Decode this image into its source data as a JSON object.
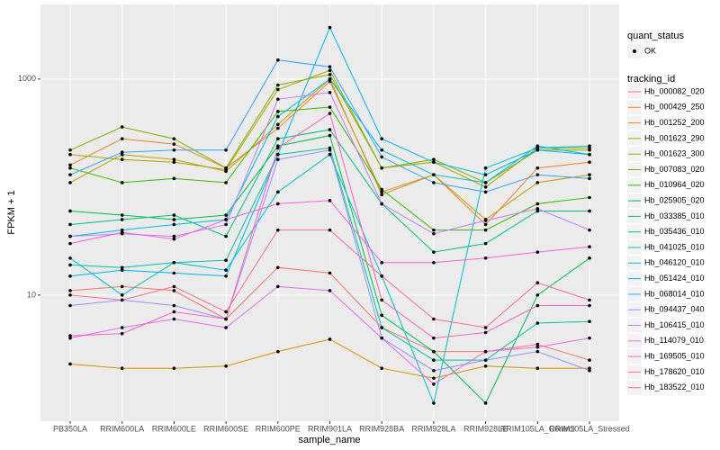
{
  "chart_data": {
    "type": "line",
    "x_label": "sample_name",
    "y_label": "FPKM + 1",
    "log_y": true,
    "grid": true,
    "point_legend_title": "quant_status",
    "point_legend_label": "OK",
    "point_color": "#000000",
    "legend_title": "tracking_id",
    "categories": [
      "PB350LA",
      "RRIM600LA",
      "RRIM600LE",
      "RRIM600SE",
      "RRIM600PE",
      "RRIM901LA",
      "RRIM928BA",
      "RRIM928LA",
      "RRIM928LE",
      "RRIM105LA_Control",
      "RRIM105LA_Stressed"
    ],
    "ylim": [
      0.68,
      4900
    ],
    "yticks": [
      10,
      1000
    ],
    "series": [
      {
        "name": "Hb_000082_020",
        "color": "#F8766D",
        "values": [
          11,
          12,
          11,
          6,
          18,
          16,
          5,
          3,
          3,
          3.5,
          2.5
        ]
      },
      {
        "name": "Hb_000429_250",
        "color": "#EA8331",
        "values": [
          160,
          280,
          250,
          150,
          350,
          950,
          90,
          130,
          45,
          150,
          170
        ]
      },
      {
        "name": "Hb_001252_200",
        "color": "#D89000",
        "values": [
          2.3,
          2.1,
          2.1,
          2.2,
          3,
          3.9,
          2.1,
          1.7,
          2.2,
          2.1,
          2.1
        ]
      },
      {
        "name": "Hb_001623_290",
        "color": "#C09B00",
        "values": [
          110,
          200,
          180,
          140,
          380,
          1000,
          85,
          130,
          50,
          110,
          130
        ]
      },
      {
        "name": "Hb_001623_300",
        "color": "#A3A500",
        "values": [
          200,
          180,
          170,
          145,
          800,
          1200,
          150,
          170,
          100,
          230,
          230
        ]
      },
      {
        "name": "Hb_007083_020",
        "color": "#7CAE00",
        "values": [
          220,
          360,
          280,
          150,
          880,
          1100,
          150,
          180,
          110,
          220,
          220
        ]
      },
      {
        "name": "Hb_010964_020",
        "color": "#39B600",
        "values": [
          150,
          110,
          120,
          110,
          500,
          550,
          95,
          40,
          40,
          70,
          80
        ]
      },
      {
        "name": "Hb_025905_020",
        "color": "#00BB4E",
        "values": [
          60,
          55,
          50,
          55,
          240,
          300,
          6.5,
          3,
          1,
          10,
          22
        ]
      },
      {
        "name": "Hb_033385_010",
        "color": "#00BF7D",
        "values": [
          45,
          50,
          55,
          35,
          280,
          340,
          70,
          25,
          30,
          60,
          60
        ]
      },
      {
        "name": "Hb_035436_010",
        "color": "#00C1A3",
        "values": [
          19,
          18,
          20,
          21,
          200,
          230,
          5,
          2.5,
          2.5,
          5.5,
          5.7
        ]
      },
      {
        "name": "Hb_041025_010",
        "color": "#00BFC4",
        "values": [
          22,
          10,
          20,
          17,
          90,
          200,
          15,
          1,
          150,
          230,
          240
        ]
      },
      {
        "name": "Hb_046120_010",
        "color": "#00BAE0",
        "values": [
          35,
          40,
          45,
          50,
          450,
          1000,
          220,
          130,
          110,
          240,
          200
        ]
      },
      {
        "name": "Hb_051424_010",
        "color": "#00B0F6",
        "values": [
          15,
          17,
          16,
          15,
          200,
          3000,
          280,
          170,
          130,
          220,
          200
        ]
      },
      {
        "name": "Hb_068014_010",
        "color": "#35A2FF",
        "values": [
          130,
          210,
          220,
          220,
          1500,
          1300,
          190,
          110,
          90,
          130,
          120
        ]
      },
      {
        "name": "Hb_094437_040",
        "color": "#9590FF",
        "values": [
          8,
          9,
          8,
          6,
          180,
          220,
          4,
          2,
          2.5,
          3,
          2
        ]
      },
      {
        "name": "Hb_106415_010",
        "color": "#C77CFF",
        "values": [
          35,
          37,
          35,
          45,
          650,
          750,
          70,
          37,
          49,
          63,
          40
        ]
      },
      {
        "name": "Hb_114079_010",
        "color": "#E76BF3",
        "values": [
          4,
          5,
          6,
          5,
          12,
          11,
          4,
          1.5,
          3,
          3.3,
          4
        ]
      },
      {
        "name": "Hb_169505_010",
        "color": "#FA62DB",
        "values": [
          30,
          38,
          33,
          50,
          70,
          75,
          20,
          20,
          22,
          25,
          28
        ]
      },
      {
        "name": "Hb_178620_010",
        "color": "#FF62BC",
        "values": [
          4.2,
          4.4,
          7,
          6,
          230,
          480,
          9,
          4,
          4.5,
          8,
          8
        ]
      },
      {
        "name": "Hb_183522_010",
        "color": "#FF6C91",
        "values": [
          10,
          9,
          12,
          7,
          40,
          40,
          15,
          6,
          5,
          13,
          9
        ]
      }
    ]
  }
}
